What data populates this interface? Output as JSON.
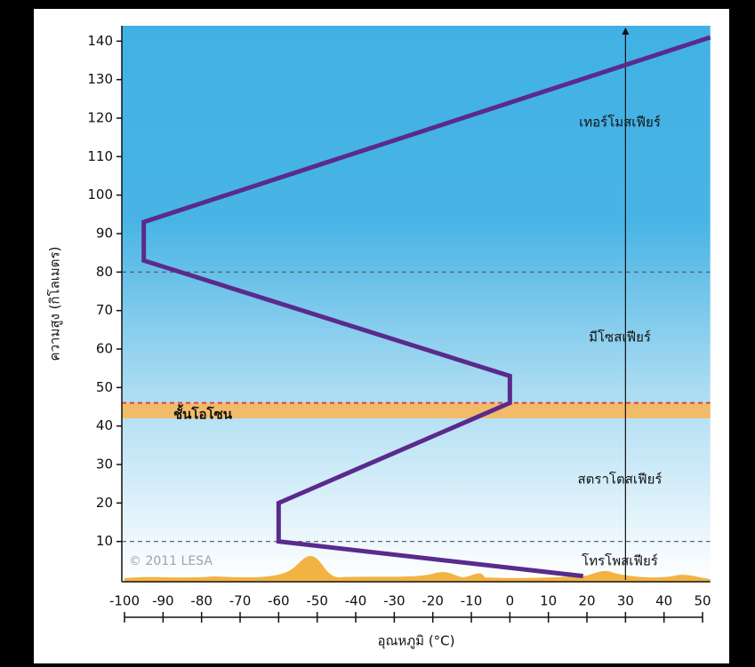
{
  "chart_data": {
    "type": "line",
    "xlabel": "อุณหภูมิ (°C)",
    "ylabel": "ความสูง (กิโลเมตร)",
    "x": [
      19,
      -60,
      -60,
      0,
      0,
      -95,
      -95,
      52
    ],
    "values": [
      1,
      10,
      20,
      46,
      53,
      83,
      93,
      141
    ],
    "color": "#5a2a8c",
    "xlim": [
      -100,
      52
    ],
    "ylim": [
      0,
      144
    ],
    "xticks": [
      -100,
      -90,
      -80,
      -70,
      -60,
      -50,
      -40,
      -30,
      -20,
      -10,
      0,
      10,
      20,
      30,
      40,
      50
    ],
    "yticks": [
      10,
      20,
      30,
      40,
      50,
      60,
      70,
      80,
      90,
      100,
      110,
      120,
      130,
      140
    ],
    "boundaries": [
      10,
      80
    ],
    "layer_axis_x": 30,
    "ozone_layer": {
      "label": "ชั้นโอโซน",
      "range": [
        42,
        46
      ]
    },
    "layers": [
      "เทอร์โมสเฟียร์",
      "มีโซสเฟียร์",
      "สตราโตสเฟียร์",
      "โทรโพสเฟียร์"
    ],
    "copyright": "© 2011 LESA"
  }
}
